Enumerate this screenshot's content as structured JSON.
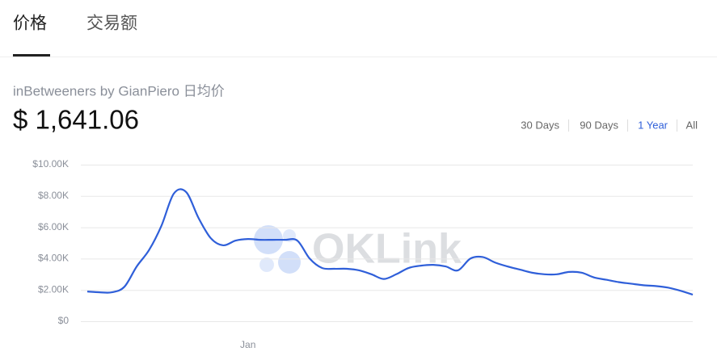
{
  "tabs": [
    "价格",
    "交易额"
  ],
  "subtitle": "inBetweeners by GianPiero 日均价",
  "price": "$ 1,641.06",
  "ranges": [
    "30 Days",
    "90 Days",
    "1 Year",
    "All"
  ],
  "watermark": "OKLink",
  "chart_data": {
    "type": "line",
    "categories": [
      null,
      null,
      null,
      null,
      null,
      null,
      null,
      null,
      null,
      null,
      null,
      null,
      null,
      "Jan",
      null,
      null,
      null,
      null,
      null,
      null,
      null,
      null,
      null,
      null,
      null,
      null,
      null,
      null,
      null,
      null,
      null,
      null,
      null,
      null,
      null,
      null,
      null,
      null,
      null,
      null,
      null,
      null,
      null,
      null,
      null,
      null,
      null,
      null,
      null,
      null
    ],
    "series": [
      {
        "color": "#2f5fd9",
        "values": [
          1900,
          1850,
          1850,
          2200,
          3500,
          4550,
          6100,
          8150,
          8250,
          6600,
          5300,
          4850,
          5150,
          5250,
          5200,
          5200,
          5200,
          5150,
          4000,
          3400,
          3350,
          3350,
          3250,
          3000,
          2700,
          3000,
          3400,
          3550,
          3600,
          3500,
          3250,
          4000,
          4100,
          3750,
          3500,
          3300,
          3100,
          3000,
          3000,
          3150,
          3100,
          2800,
          2650,
          2500,
          2400,
          2300,
          2250,
          2150,
          1950,
          1700
        ]
      }
    ],
    "ylim": [
      0,
      10000
    ],
    "yticks": [
      {
        "value": 0,
        "label": "$0"
      },
      {
        "value": 2000,
        "label": "$2.00K"
      },
      {
        "value": 4000,
        "label": "$4.00K"
      },
      {
        "value": 6000,
        "label": "$6.00K"
      },
      {
        "value": 8000,
        "label": "$8.00K"
      },
      {
        "value": 10000,
        "label": "$10.00K"
      }
    ],
    "grid": true
  }
}
